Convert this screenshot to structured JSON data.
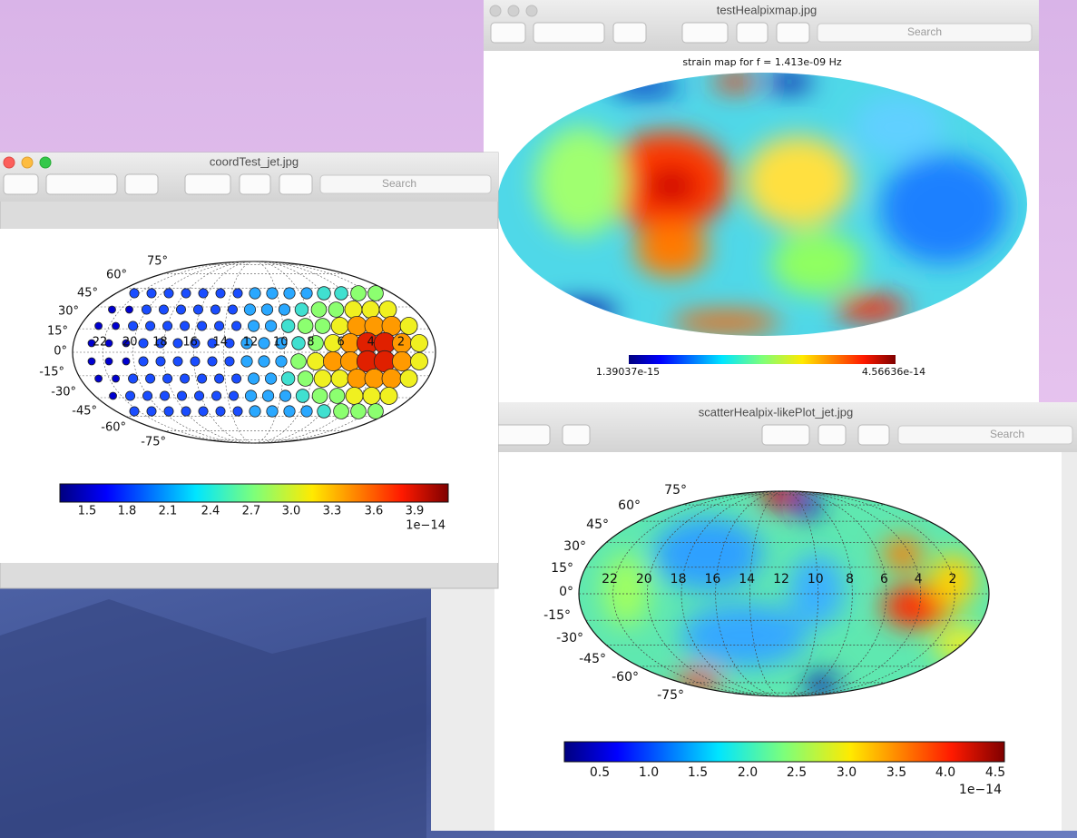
{
  "windows": [
    {
      "title": "testHealpixmap.jpg",
      "search": "Search",
      "figure": {
        "title": "strain map for f = 1.413e-09 Hz",
        "colorbar_labels": [
          "1.39037e-15",
          "4.56636e-14"
        ]
      }
    },
    {
      "title": "coordTest_jet.jpg",
      "search": "Search",
      "figure": {
        "lat_labels": [
          "75°",
          "60°",
          "45°",
          "30°",
          "15°",
          "0°",
          "-15°",
          "-30°",
          "-45°",
          "-60°",
          "-75°"
        ],
        "lon_labels": [
          "22",
          "20",
          "18",
          "16",
          "14",
          "12",
          "10",
          "8",
          "6",
          "4",
          "2"
        ],
        "colorbar_ticks": [
          "1.5",
          "1.8",
          "2.1",
          "2.4",
          "2.7",
          "3.0",
          "3.3",
          "3.6",
          "3.9"
        ],
        "colorbar_scale": "1e−14"
      }
    },
    {
      "title": "scatterHealpix-likePlot_jet.jpg",
      "search": "Search",
      "figure": {
        "lat_labels": [
          "75°",
          "60°",
          "45°",
          "30°",
          "15°",
          "0°",
          "-15°",
          "-30°",
          "-45°",
          "-60°",
          "-75°"
        ],
        "lon_labels": [
          "22",
          "20",
          "18",
          "16",
          "14",
          "12",
          "10",
          "8",
          "6",
          "4",
          "2"
        ],
        "colorbar_ticks": [
          "0.5",
          "1.0",
          "1.5",
          "2.0",
          "2.5",
          "3.0",
          "3.5",
          "4.0",
          "4.5"
        ],
        "colorbar_scale": "1e−14"
      }
    }
  ]
}
